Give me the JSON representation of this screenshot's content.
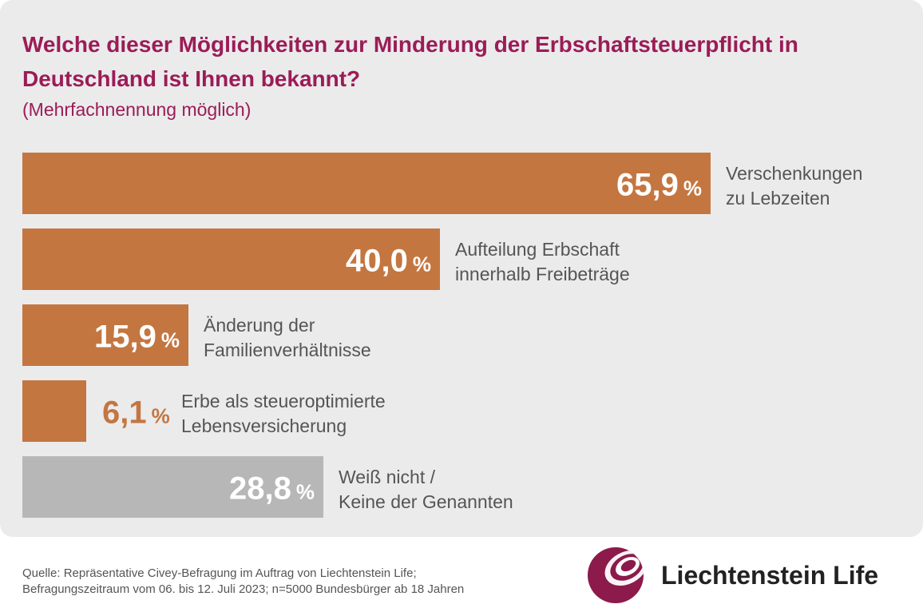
{
  "chart_data": {
    "type": "bar",
    "orientation": "horizontal",
    "title": "Welche dieser Möglichkeiten zur Minderung der Erbschaftsteuerpflicht in Deutschland ist Ihnen bekannt?",
    "subtitle": "(Mehrfachnennung möglich)",
    "unit": "%",
    "xlim": [
      0,
      65.9
    ],
    "bars": [
      {
        "label_lines": [
          "Verschenkungen",
          "zu Lebzeiten"
        ],
        "value": 65.9,
        "display": "65,9",
        "color": "#c47641"
      },
      {
        "label_lines": [
          "Aufteilung Erbschaft",
          "innerhalb Freibeträge"
        ],
        "value": 40.0,
        "display": "40,0",
        "color": "#c47641"
      },
      {
        "label_lines": [
          "Änderung der",
          "Familienverhältnisse"
        ],
        "value": 15.9,
        "display": "15,9",
        "color": "#c47641"
      },
      {
        "label_lines": [
          "Erbe als steueroptimierte",
          "Lebensversicherung"
        ],
        "value": 6.1,
        "display": "6,1",
        "color": "#c47641"
      },
      {
        "label_lines": [
          "Weiß nicht /",
          "Keine der Genannten"
        ],
        "value": 28.8,
        "display": "28,8",
        "color": "#b7b7b7"
      }
    ]
  },
  "footer": {
    "source_line1": "Quelle: Repräsentative Civey-Befragung im Auftrag von Liechtenstein Life;",
    "source_line2": "Befragungszeitraum vom 06. bis 12. Juli 2023; n=5000 Bundesbürger ab 18 Jahren",
    "brand": "Liechtenstein Life"
  },
  "colors": {
    "title": "#9b1c57",
    "label_text": "#555555",
    "value_inside": "#ffffff",
    "value_outside": "#c47641",
    "panel_bg": "#ebebeb"
  }
}
